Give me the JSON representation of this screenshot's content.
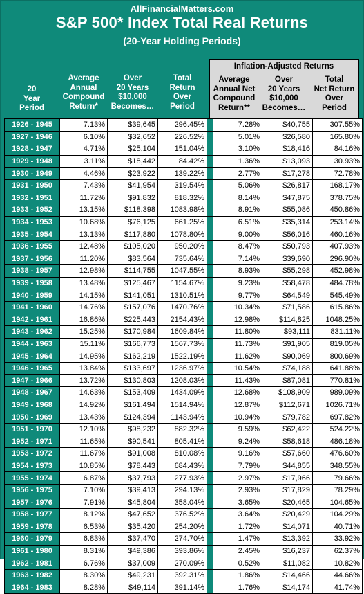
{
  "site": "AllFinancialMatters.com",
  "title": "S&P 500* Index Total Real Returns",
  "subtitle": "(20-Year Holding Periods)",
  "inflation_header": "Inflation-Adjusted Returns",
  "headers": {
    "period": [
      "20",
      "Year",
      "Period"
    ],
    "avg_return": [
      "Average",
      "Annual",
      "Compound",
      "Return*"
    ],
    "over_20": [
      "Over",
      "20 Years",
      "$10,000",
      "Becomes…"
    ],
    "total_return": [
      "Total",
      "Return",
      "Over",
      "Period"
    ],
    "adj_avg_return": [
      "Average",
      "Annual Net",
      "Compound",
      "Return**"
    ],
    "adj_over_20": [
      "Over",
      "20 Years",
      "$10,000",
      "Becomes…"
    ],
    "adj_total_return": [
      "Total",
      "Net Return",
      "Over",
      "Period"
    ]
  },
  "rows": [
    [
      "1926 - 1945",
      "7.13%",
      "$39,645",
      "296.45%",
      "7.28%",
      "$40,755",
      "307.55%"
    ],
    [
      "1927 - 1946",
      "6.10%",
      "$32,652",
      "226.52%",
      "5.01%",
      "$26,580",
      "165.80%"
    ],
    [
      "1928 - 1947",
      "4.71%",
      "$25,104",
      "151.04%",
      "3.10%",
      "$18,416",
      "84.16%"
    ],
    [
      "1929 - 1948",
      "3.11%",
      "$18,442",
      "84.42%",
      "1.36%",
      "$13,093",
      "30.93%"
    ],
    [
      "1930 - 1949",
      "4.46%",
      "$23,922",
      "139.22%",
      "2.77%",
      "$17,278",
      "72.78%"
    ],
    [
      "1931 - 1950",
      "7.43%",
      "$41,954",
      "319.54%",
      "5.06%",
      "$26,817",
      "168.17%"
    ],
    [
      "1932 - 1951",
      "11.72%",
      "$91,832",
      "818.32%",
      "8.14%",
      "$47,875",
      "378.75%"
    ],
    [
      "1933 - 1952",
      "13.15%",
      "$118,398",
      "1083.98%",
      "8.91%",
      "$55,086",
      "450.86%"
    ],
    [
      "1934 - 1953",
      "10.68%",
      "$76,125",
      "661.25%",
      "6.51%",
      "$35,314",
      "253.14%"
    ],
    [
      "1935 - 1954",
      "13.13%",
      "$117,880",
      "1078.80%",
      "9.00%",
      "$56,016",
      "460.16%"
    ],
    [
      "1936 - 1955",
      "12.48%",
      "$105,020",
      "950.20%",
      "8.47%",
      "$50,793",
      "407.93%"
    ],
    [
      "1937 - 1956",
      "11.20%",
      "$83,564",
      "735.64%",
      "7.14%",
      "$39,690",
      "296.90%"
    ],
    [
      "1938 - 1957",
      "12.98%",
      "$114,755",
      "1047.55%",
      "8.93%",
      "$55,298",
      "452.98%"
    ],
    [
      "1939 - 1958",
      "13.48%",
      "$125,467",
      "1154.67%",
      "9.23%",
      "$58,478",
      "484.78%"
    ],
    [
      "1940 - 1959",
      "14.15%",
      "$141,051",
      "1310.51%",
      "9.77%",
      "$64,549",
      "545.49%"
    ],
    [
      "1941 - 1960",
      "14.76%",
      "$157,076",
      "1470.76%",
      "10.34%",
      "$71,586",
      "615.86%"
    ],
    [
      "1942 - 1961",
      "16.86%",
      "$225,443",
      "2154.43%",
      "12.98%",
      "$114,825",
      "1048.25%"
    ],
    [
      "1943 - 1962",
      "15.25%",
      "$170,984",
      "1609.84%",
      "11.80%",
      "$93,111",
      "831.11%"
    ],
    [
      "1944 - 1963",
      "15.11%",
      "$166,773",
      "1567.73%",
      "11.73%",
      "$91,905",
      "819.05%"
    ],
    [
      "1945 - 1964",
      "14.95%",
      "$162,219",
      "1522.19%",
      "11.62%",
      "$90,069",
      "800.69%"
    ],
    [
      "1946 - 1965",
      "13.84%",
      "$133,697",
      "1236.97%",
      "10.54%",
      "$74,188",
      "641.88%"
    ],
    [
      "1947 - 1966",
      "13.72%",
      "$130,803",
      "1208.03%",
      "11.43%",
      "$87,081",
      "770.81%"
    ],
    [
      "1948 - 1967",
      "14.63%",
      "$153,409",
      "1434.09%",
      "12.68%",
      "$108,909",
      "989.09%"
    ],
    [
      "1949 - 1968",
      "14.92%",
      "$161,494",
      "1514.94%",
      "12.87%",
      "$112,671",
      "1026.71%"
    ],
    [
      "1950 - 1969",
      "13.43%",
      "$124,394",
      "1143.94%",
      "10.94%",
      "$79,782",
      "697.82%"
    ],
    [
      "1951 - 1970",
      "12.10%",
      "$98,232",
      "882.32%",
      "9.59%",
      "$62,422",
      "524.22%"
    ],
    [
      "1952 - 1971",
      "11.65%",
      "$90,541",
      "805.41%",
      "9.24%",
      "$58,618",
      "486.18%"
    ],
    [
      "1953 - 1972",
      "11.67%",
      "$91,008",
      "810.08%",
      "9.16%",
      "$57,660",
      "476.60%"
    ],
    [
      "1954 - 1973",
      "10.85%",
      "$78,443",
      "684.43%",
      "7.79%",
      "$44,855",
      "348.55%"
    ],
    [
      "1955 - 1974",
      "6.87%",
      "$37,793",
      "277.93%",
      "2.97%",
      "$17,966",
      "79.66%"
    ],
    [
      "1956 - 1975",
      "7.10%",
      "$39,413",
      "294.13%",
      "2.93%",
      "$17,829",
      "78.29%"
    ],
    [
      "1957 - 1976",
      "7.91%",
      "$45,804",
      "358.04%",
      "3.65%",
      "$20,465",
      "104.65%"
    ],
    [
      "1958 - 1977",
      "8.12%",
      "$47,652",
      "376.52%",
      "3.64%",
      "$20,429",
      "104.29%"
    ],
    [
      "1959 - 1978",
      "6.53%",
      "$35,420",
      "254.20%",
      "1.72%",
      "$14,071",
      "40.71%"
    ],
    [
      "1960 - 1979",
      "6.83%",
      "$37,470",
      "274.70%",
      "1.47%",
      "$13,392",
      "33.92%"
    ],
    [
      "1961 - 1980",
      "8.31%",
      "$49,386",
      "393.86%",
      "2.45%",
      "$16,237",
      "62.37%"
    ],
    [
      "1962 - 1981",
      "6.76%",
      "$37,009",
      "270.09%",
      "0.52%",
      "$11,082",
      "10.82%"
    ],
    [
      "1963 - 1982",
      "8.30%",
      "$49,231",
      "392.31%",
      "1.86%",
      "$14,466",
      "44.66%"
    ],
    [
      "1964 - 1983",
      "8.28%",
      "$49,114",
      "391.14%",
      "1.76%",
      "$14,174",
      "41.74%"
    ]
  ],
  "colors": {
    "teal": "#0f8a7a",
    "grey_panel": "#d9d9d9"
  }
}
